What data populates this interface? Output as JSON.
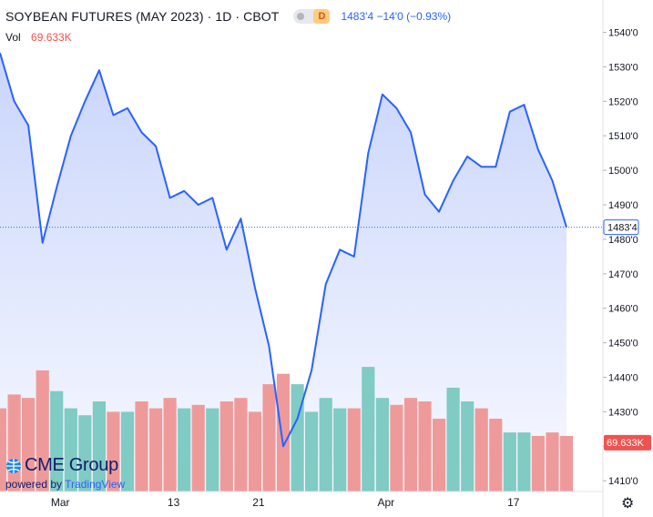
{
  "header": {
    "title": "SOYBEAN FUTURES (MAY 2023) · 1D · CBOT",
    "delay_badge": "D",
    "last_quote": "1483'4 −14'0 (−0.93%)"
  },
  "volume_legend": {
    "label": "Vol",
    "value": "69.633K"
  },
  "logo": {
    "brand": "CME Group",
    "powered_prefix": "powered by",
    "powered_name": "TradingView"
  },
  "settings_icon": "gear-icon",
  "colors": {
    "line": "#2962ff",
    "area": "#c3d0fb",
    "volume_up": "#80cbc4",
    "volume_down": "#ef9a9a",
    "price_label_bg": "#ffffff",
    "volume_label_bg": "#ef5350"
  },
  "chart_data": {
    "type": "area",
    "title": "SOYBEAN FUTURES (MAY 2023) · 1D · CBOT",
    "price_axis": {
      "ylim": [
        1406,
        1544
      ],
      "ticks": [
        1410,
        1420,
        1430,
        1440,
        1450,
        1460,
        1470,
        1480,
        1490,
        1500,
        1510,
        1520,
        1530,
        1540
      ],
      "tick_labels": [
        "1410'0",
        "1420'0",
        "1430'0",
        "1440'0",
        "1450'0",
        "1460'0",
        "1470'0",
        "1480'0",
        "1490'0",
        "1500'0",
        "1510'0",
        "1520'0",
        "1530'0",
        "1540'0"
      ],
      "last_price": 1483.5,
      "last_price_label": "1483'4",
      "volume_label": "69.633K"
    },
    "x_axis": {
      "ticks": [
        {
          "index": 4,
          "label": "Mar"
        },
        {
          "index": 12,
          "label": "13"
        },
        {
          "index": 18,
          "label": "21"
        },
        {
          "index": 27,
          "label": "Apr"
        },
        {
          "index": 36,
          "label": "17"
        }
      ]
    },
    "series": [
      {
        "values": [
          1534,
          1520,
          1513,
          1479,
          1495,
          1510,
          1520,
          1529,
          1516,
          1518,
          1511,
          1507,
          1492,
          1494,
          1490,
          1492,
          1477,
          1486,
          1466,
          1449,
          1420,
          1428,
          1442,
          1467,
          1477,
          1475,
          1505,
          1522,
          1518,
          1511,
          1493,
          1488,
          1497,
          1504,
          1501,
          1501,
          1517,
          1519,
          1506,
          1497,
          1483.5
        ]
      },
      {
        "name": "Vol",
        "volumes": [
          1431,
          1435,
          1434,
          1442,
          1436,
          1431,
          1429,
          1433,
          1430,
          1430,
          1433,
          1431,
          1434,
          1431,
          1432,
          1431,
          1433,
          1434,
          1430,
          1438,
          1441,
          1438,
          1430,
          1434,
          1431,
          1431,
          1443,
          1434,
          1432,
          1434,
          1433,
          1428,
          1437,
          1433,
          1431,
          1428,
          1424,
          1424,
          1423,
          1424,
          1423
        ],
        "up": [
          false,
          false,
          false,
          false,
          true,
          true,
          true,
          true,
          false,
          true,
          false,
          false,
          false,
          true,
          false,
          true,
          false,
          false,
          false,
          false,
          false,
          true,
          true,
          true,
          true,
          false,
          true,
          true,
          false,
          false,
          false,
          false,
          true,
          true,
          false,
          false,
          true,
          true,
          false,
          false,
          false
        ]
      }
    ]
  }
}
